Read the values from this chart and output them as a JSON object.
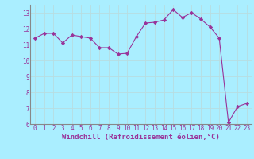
{
  "x": [
    0,
    1,
    2,
    3,
    4,
    5,
    6,
    7,
    8,
    9,
    10,
    11,
    12,
    13,
    14,
    15,
    16,
    17,
    18,
    19,
    20,
    21,
    22,
    23
  ],
  "y": [
    11.4,
    11.7,
    11.7,
    11.1,
    11.6,
    11.5,
    11.4,
    10.8,
    10.8,
    10.4,
    10.45,
    11.5,
    12.35,
    12.4,
    12.55,
    13.2,
    12.7,
    13.0,
    12.6,
    12.1,
    11.4,
    6.1,
    7.1,
    7.3
  ],
  "line_color": "#993399",
  "marker_color": "#993399",
  "bg_color": "#aaeeff",
  "grid_color": "#b8dde0",
  "xlabel": "Windchill (Refroidissement éolien,°C)",
  "xlabel_color": "#993399",
  "tick_color": "#993399",
  "ylim": [
    6,
    13.5
  ],
  "xlim": [
    -0.5,
    23.5
  ],
  "yticks": [
    6,
    7,
    8,
    9,
    10,
    11,
    12,
    13
  ],
  "xticks": [
    0,
    1,
    2,
    3,
    4,
    5,
    6,
    7,
    8,
    9,
    10,
    11,
    12,
    13,
    14,
    15,
    16,
    17,
    18,
    19,
    20,
    21,
    22,
    23
  ],
  "font_family": "monospace",
  "tick_fontsize": 5.5,
  "xlabel_fontsize": 6.5,
  "ylabel_fontsize": 6,
  "linewidth": 0.8,
  "markersize": 2.2
}
